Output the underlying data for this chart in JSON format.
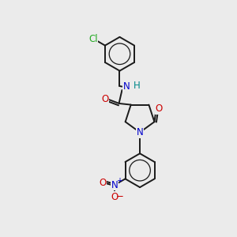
{
  "bg_color": "#ebebeb",
  "bond_color": "#1a1a1a",
  "bond_width": 1.4,
  "atom_colors": {
    "C": "#1a1a1a",
    "N": "#0000cc",
    "O": "#cc0000",
    "H": "#008888",
    "Cl": "#22aa22"
  },
  "font_size": 8.5,
  "fig_size": [
    3.0,
    3.0
  ],
  "dpi": 100
}
